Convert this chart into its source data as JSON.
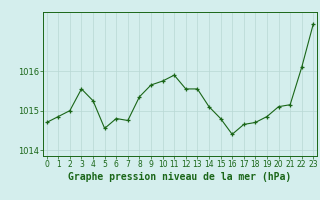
{
  "x": [
    0,
    1,
    2,
    3,
    4,
    5,
    6,
    7,
    8,
    9,
    10,
    11,
    12,
    13,
    14,
    15,
    16,
    17,
    18,
    19,
    20,
    21,
    22,
    23
  ],
  "y": [
    1014.7,
    1014.85,
    1015.0,
    1015.55,
    1015.25,
    1014.55,
    1014.8,
    1014.75,
    1015.35,
    1015.65,
    1015.75,
    1015.9,
    1015.55,
    1015.55,
    1015.1,
    1014.8,
    1014.4,
    1014.65,
    1014.7,
    1014.85,
    1015.1,
    1015.15,
    1016.1,
    1017.2
  ],
  "line_color": "#1a6618",
  "marker": "+",
  "bg_color": "#d4eeed",
  "grid_color": "#b8d8d4",
  "tick_color": "#1a6618",
  "label_color": "#1a6618",
  "xlabel": "Graphe pression niveau de la mer (hPa)",
  "yticks": [
    1014,
    1015,
    1016
  ],
  "ylim": [
    1013.85,
    1017.5
  ],
  "xlim": [
    -0.3,
    23.3
  ],
  "font_size_label": 7.0,
  "font_size_tick": 6.0
}
